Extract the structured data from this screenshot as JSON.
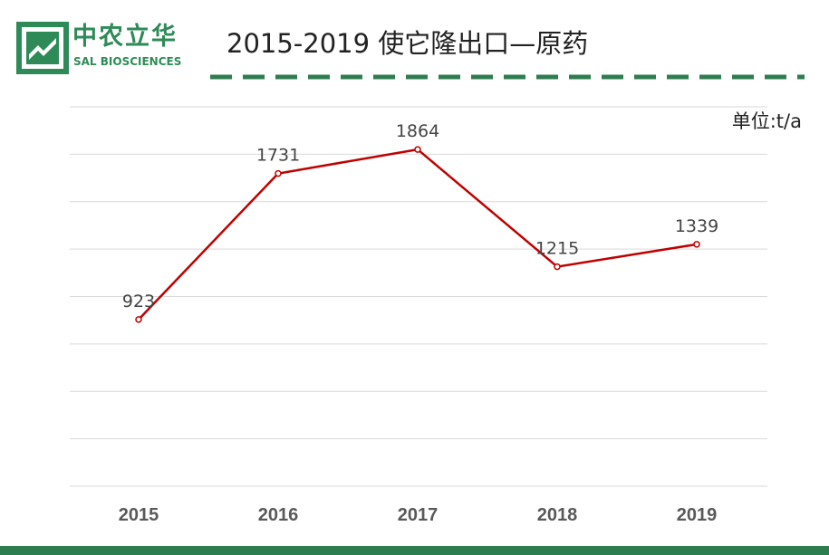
{
  "logo": {
    "cn": "中农立华",
    "en": "SAL BIOSCIENCES"
  },
  "title": "2015-2019 使它隆出口—原药",
  "unit": "单位:t/a",
  "colors": {
    "brand_green": "#2e8b57",
    "line": "#c00000",
    "grid": "#d9d9d9",
    "footer": "#2e7d4f"
  },
  "chart_data": {
    "type": "line",
    "categories": [
      "2015",
      "2016",
      "2017",
      "2018",
      "2019"
    ],
    "values": [
      923,
      1731,
      1864,
      1215,
      1339
    ],
    "data_labels": [
      "923",
      "1731",
      "1864",
      "1215",
      "1339"
    ],
    "ylim": [
      0,
      2100
    ],
    "grid": true,
    "legend": "none"
  }
}
